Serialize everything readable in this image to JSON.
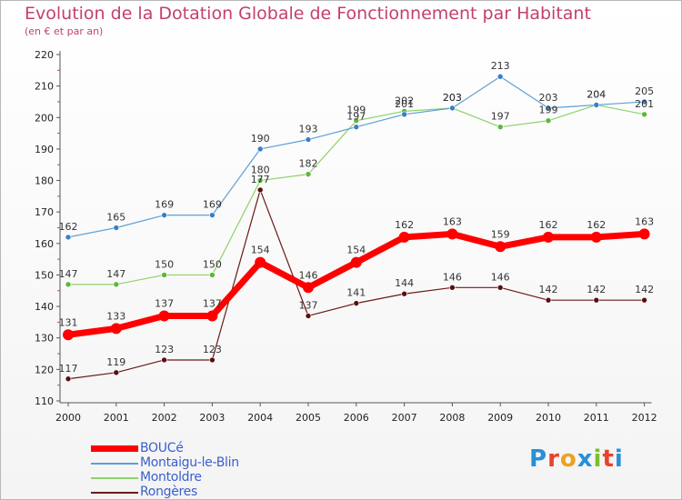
{
  "title": "Evolution de la Dotation Globale de Fonctionnement par Habitant",
  "subtitle": "(en € et par an)",
  "logo": {
    "text": "Proxiti",
    "letters": [
      "P",
      "r",
      "o",
      "x",
      "i",
      "t",
      "i"
    ],
    "colors": [
      "#2a8fd6",
      "#e8442a",
      "#f0a020",
      "#2a8fd6",
      "#7bbf2a",
      "#e8442a",
      "#2a8fd6"
    ]
  },
  "chart_data": {
    "type": "line",
    "categories": [
      "2000",
      "2001",
      "2002",
      "2003",
      "2004",
      "2005",
      "2006",
      "2007",
      "2008",
      "2009",
      "2010",
      "2011",
      "2012"
    ],
    "ylim": [
      110,
      220
    ],
    "yticks": [
      110,
      120,
      130,
      140,
      150,
      160,
      170,
      180,
      190,
      200,
      210,
      220
    ],
    "grid": false,
    "legend_position": "bottom-left",
    "series": [
      {
        "name": "Rongères",
        "color": "#6b1a1a",
        "point_color": "#5a0e0e",
        "width": 1.2,
        "radius": 3,
        "values": [
          117,
          119,
          123,
          123,
          177,
          137,
          141,
          144,
          146,
          146,
          142,
          142,
          142
        ],
        "labels": [
          "117",
          "119",
          "123",
          "123",
          "177",
          "137",
          "141",
          "144",
          "146",
          "146",
          "142",
          "142",
          "142"
        ]
      },
      {
        "name": "Montoldre",
        "color": "#8fd16a",
        "point_color": "#5cb83a",
        "width": 1.2,
        "radius": 3,
        "values": [
          147,
          147,
          150,
          150,
          180,
          182,
          199,
          202,
          203,
          197,
          199,
          204,
          201
        ],
        "labels": [
          "147",
          "147",
          "150",
          "150",
          "180",
          "182",
          "199",
          "202",
          "203",
          "197",
          "199",
          "204",
          "201"
        ]
      },
      {
        "name": "Montaigu-le-Blin",
        "color": "#5e9fd6",
        "point_color": "#3a7fc6",
        "width": 1.2,
        "radius": 3,
        "values": [
          162,
          165,
          169,
          169,
          190,
          193,
          197,
          201,
          203,
          213,
          203,
          204,
          205
        ],
        "labels": [
          "162",
          "165",
          "169",
          "169",
          "190",
          "193",
          "197",
          "201",
          "203",
          "213",
          "203",
          "204",
          "205"
        ]
      },
      {
        "name": "BOUCé",
        "color": "#ff0000",
        "point_color": "#ff0000",
        "width": 7,
        "radius": 6,
        "values": [
          131,
          133,
          137,
          137,
          154,
          146,
          154,
          162,
          163,
          159,
          162,
          162,
          163
        ],
        "labels": [
          "131",
          "133",
          "137",
          "137",
          "154",
          "146",
          "154",
          "162",
          "163",
          "159",
          "162",
          "162",
          "163"
        ]
      }
    ]
  }
}
